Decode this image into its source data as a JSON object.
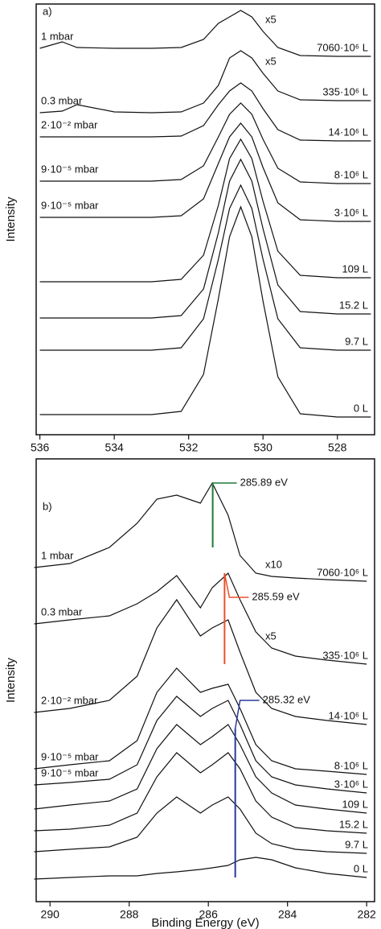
{
  "chart_data": [
    {
      "type": "line",
      "panel_label": "a)",
      "ylabel": "Intensity",
      "x": [
        536,
        535.4,
        535,
        534,
        533,
        532.2,
        531.6,
        531.2,
        530.9,
        530.6,
        530.3,
        530,
        529.6,
        529,
        528,
        527.1
      ],
      "xlim": [
        536.1,
        527
      ],
      "xticks": [
        536,
        534,
        532,
        530,
        528
      ],
      "ylim": [
        0,
        535
      ],
      "series": [
        {
          "name": "7060·10⁶ L",
          "condition": "1 mbar",
          "scale": "x5",
          "color": "#111111",
          "values": [
            480,
            488,
            481,
            480,
            480,
            481,
            491,
            511,
            519,
            527,
            519,
            501,
            481,
            471,
            470,
            470
          ]
        },
        {
          "name": "335·10⁶ L",
          "condition": "0.3 mbar",
          "scale": "x5",
          "color": "#111111",
          "values": [
            400,
            402,
            410,
            401,
            400,
            401,
            412,
            434,
            468,
            477,
            468,
            449,
            427,
            416,
            415,
            415
          ]
        },
        {
          "name": "14·10⁶ L",
          "condition": "2·10⁻² mbar",
          "color": "#111111",
          "values": [
            370,
            370,
            370,
            370,
            370,
            371,
            384,
            410,
            427,
            437,
            427,
            405,
            379,
            366,
            365,
            365
          ]
        },
        {
          "name": "8·10⁶ L",
          "condition": "9·10⁻⁵ mbar",
          "color": "#111111",
          "values": [
            315,
            315,
            315,
            315,
            315,
            317,
            334,
            370,
            398,
            412,
            398,
            367,
            331,
            314,
            312,
            312
          ]
        },
        {
          "name": "3·10⁶ L",
          "condition": "9·10⁻⁵ mbar",
          "color": "#111111",
          "values": [
            270,
            270,
            270,
            270,
            270,
            272,
            293,
            337,
            370,
            387,
            370,
            332,
            288,
            267,
            265,
            265
          ]
        },
        {
          "name": "109 L",
          "color": "#111111",
          "values": [
            190,
            190,
            190,
            190,
            190,
            193,
            223,
            285,
            343,
            367,
            343,
            290,
            228,
            198,
            195,
            195
          ]
        },
        {
          "name": "15.2 L",
          "color": "#111111",
          "values": [
            145,
            145,
            145,
            145,
            145,
            148,
            181,
            251,
            315,
            342,
            315,
            256,
            186,
            153,
            150,
            150
          ]
        },
        {
          "name": "9.7 L",
          "color": "#111111",
          "values": [
            105,
            105,
            105,
            105,
            105,
            108,
            144,
            218,
            281,
            310,
            281,
            218,
            144,
            108,
            105,
            105
          ]
        },
        {
          "name": "0 L",
          "color": "#111111",
          "values": [
            25,
            25,
            25,
            25,
            25,
            29,
            75,
            169,
            246,
            283,
            246,
            166,
            72,
            26,
            22,
            22
          ]
        }
      ]
    },
    {
      "type": "line",
      "panel_label": "b)",
      "ylabel": "Intensity",
      "xlabel": "Binding Energy (eV)",
      "x": [
        290.4,
        289.5,
        288.5,
        287.8,
        287.3,
        286.8,
        286.2,
        285.9,
        285.5,
        285.2,
        284.8,
        284.4,
        283.8,
        283,
        282
      ],
      "xlim": [
        290.35,
        281.8
      ],
      "xticks": [
        290,
        288,
        286,
        284,
        282
      ],
      "ylim": [
        0,
        550
      ],
      "series": [
        {
          "name": "7060·10⁶ L",
          "condition": "1 mbar",
          "scale": "x10",
          "color": "#111111",
          "values": [
            415,
            420,
            440,
            470,
            500,
            505,
            495,
            520,
            480,
            430,
            408,
            404,
            402,
            400,
            398
          ]
        },
        {
          "name": "335·10⁶ L",
          "condition": "0.3 mbar",
          "scale": "x5",
          "color": "#111111",
          "values": [
            345,
            350,
            355,
            370,
            385,
            405,
            365,
            390,
            408,
            375,
            335,
            315,
            305,
            300,
            295
          ]
        },
        {
          "name": "14·10⁶ L",
          "condition": "2·10⁻² mbar",
          "color": "#111111",
          "values": [
            235,
            240,
            250,
            280,
            340,
            375,
            330,
            340,
            350,
            310,
            260,
            240,
            230,
            225,
            220
          ]
        },
        {
          "name": "8·10⁶ L",
          "condition": "9·10⁻⁵ mbar",
          "color": "#111111",
          "values": [
            165,
            170,
            175,
            200,
            260,
            290,
            260,
            265,
            270,
            240,
            195,
            175,
            165,
            162,
            158
          ]
        },
        {
          "name": "3·10⁶ L",
          "condition": "9·10⁻⁵ mbar",
          "color": "#111111",
          "values": [
            145,
            148,
            152,
            170,
            225,
            255,
            230,
            240,
            250,
            220,
            175,
            155,
            145,
            140,
            135
          ]
        },
        {
          "name": "109 L",
          "color": "#111111",
          "values": [
            115,
            120,
            125,
            140,
            190,
            220,
            195,
            205,
            220,
            195,
            155,
            135,
            120,
            115,
            110
          ]
        },
        {
          "name": "15.2 L",
          "color": "#111111",
          "values": [
            88,
            90,
            95,
            110,
            155,
            185,
            160,
            170,
            185,
            165,
            125,
            105,
            92,
            88,
            85
          ]
        },
        {
          "name": "9.7 L",
          "color": "#111111",
          "values": [
            62,
            65,
            68,
            80,
            110,
            130,
            110,
            120,
            130,
            115,
            85,
            72,
            65,
            62,
            60
          ]
        },
        {
          "name": "0 L",
          "color": "#111111",
          "values": [
            28,
            30,
            32,
            32,
            35,
            37,
            40,
            42,
            45,
            52,
            55,
            52,
            42,
            35,
            30
          ]
        }
      ],
      "markers": [
        {
          "label": "285.89 eV",
          "x": 285.89,
          "span": [
            440,
            520
          ],
          "color": "#1f7a3a"
        },
        {
          "label": "285.59 eV",
          "x": 285.59,
          "span": [
            295,
            408
          ],
          "color": "#e8502a"
        },
        {
          "label": "285.32 eV",
          "x": 285.32,
          "span": [
            30,
            215
          ],
          "color": "#2a3a9a"
        }
      ]
    }
  ]
}
